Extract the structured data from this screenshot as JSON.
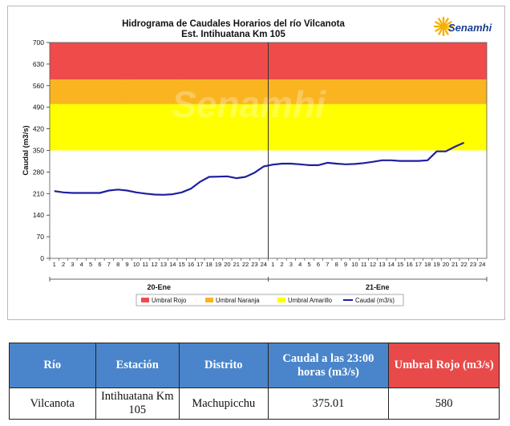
{
  "chart_data": {
    "type": "line",
    "title": "Hidrograma de Caudales Horarios del río Vilcanota",
    "subtitle": "Est. Intihuatana Km 105",
    "ylabel": "Caudal (m3/s)",
    "ylim": [
      0,
      700
    ],
    "yticks": [
      "0",
      "70",
      "140",
      "210",
      "280",
      "350",
      "420",
      "490",
      "560",
      "630",
      "700"
    ],
    "grid": false,
    "legend_position": "bottom",
    "thresholds": [
      {
        "name": "Umbral Rojo",
        "from": 580,
        "to": 700,
        "color": "#ef4b4b"
      },
      {
        "name": "Umbral Naranja",
        "from": 500,
        "to": 580,
        "color": "#f9b420"
      },
      {
        "name": "Umbral Amarillo",
        "from": 350,
        "to": 500,
        "color": "#ffff00"
      }
    ],
    "days": [
      {
        "label": "20-Ene",
        "hours": [
          "1",
          "2",
          "3",
          "4",
          "5",
          "6",
          "7",
          "8",
          "9",
          "10",
          "11",
          "12",
          "13",
          "14",
          "15",
          "16",
          "17",
          "18",
          "19",
          "20",
          "21",
          "22",
          "23",
          "24"
        ]
      },
      {
        "label": "21-Ene",
        "hours": [
          "1",
          "2",
          "3",
          "4",
          "5",
          "6",
          "7",
          "8",
          "9",
          "10",
          "11",
          "12",
          "13",
          "14",
          "15",
          "16",
          "17",
          "18",
          "19",
          "20",
          "21",
          "22",
          "23",
          "24"
        ]
      }
    ],
    "series": [
      {
        "name": "Caudal (m3/s)",
        "color": "#1f1fa0",
        "values": [
          218,
          214,
          212,
          212,
          212,
          212,
          220,
          223,
          220,
          214,
          210,
          207,
          206,
          208,
          214,
          226,
          248,
          264,
          265,
          266,
          260,
          264,
          278,
          298,
          304,
          307,
          307,
          305,
          302,
          302,
          310,
          307,
          305,
          306,
          309,
          313,
          318,
          318,
          316,
          316,
          316,
          318,
          347,
          347,
          362,
          375
        ]
      }
    ],
    "legend": [
      "Umbral Rojo",
      "Umbral Naranja",
      "Umbral Amarillo",
      "Caudal (m3/s)"
    ]
  },
  "logo": {
    "text": "Senamhi",
    "color": "#1a3f8f",
    "sun_color": "#f6b000"
  },
  "watermark": {
    "text": "Senamhi"
  },
  "table": {
    "headers": [
      "Río",
      "Estación",
      "Distrito",
      "Caudal a las 23:00 horas (m3/s)",
      "Umbral Rojo (m3/s)"
    ],
    "header_colors": [
      "#4a85cb",
      "#4a85cb",
      "#4a85cb",
      "#4a85cb",
      "#e84a4a"
    ],
    "row": [
      "Vilcanota",
      "Intihuatana Km 105",
      "Machupicchu",
      "375.01",
      "580"
    ]
  }
}
